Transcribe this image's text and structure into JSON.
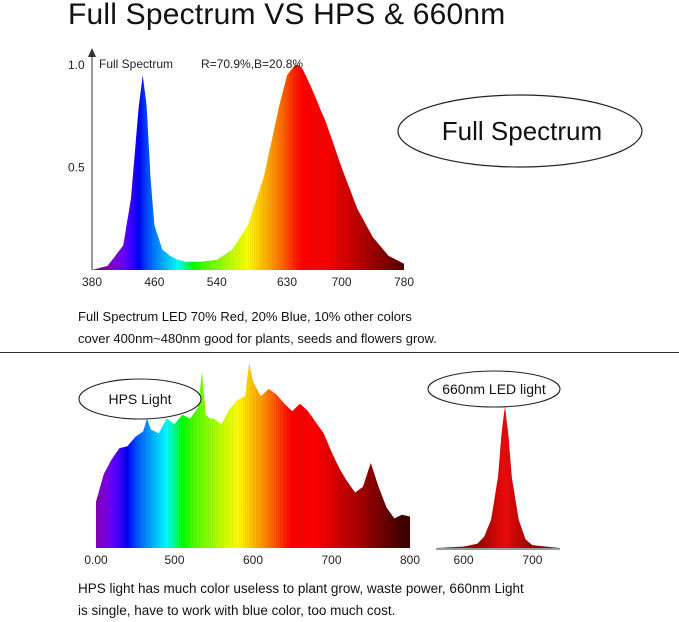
{
  "page": {
    "title": "Full Spectrum VS HPS & 660nm",
    "full_spectrum_desc_line1": "Full Spectrum LED 70% Red, 20% Blue, 10% other colors",
    "full_spectrum_desc_line2": "cover 400nm~480nm good for plants, seeds and flowers grow.",
    "hps_desc_line1": "HPS light has much color useless to plant grow, waste power, 660nm Light",
    "hps_desc_line2": "is single, have to work with blue color, too much cost."
  },
  "chart_data": [
    {
      "type": "area",
      "legend_label": "Full Spectrum",
      "annotation": "R=70.9%,B=20.8%",
      "badge": "Full Spectrum",
      "x_ticks": [
        "380",
        "460",
        "540",
        "630",
        "700",
        "780"
      ],
      "y_ticks": [
        "1.0",
        "0.5"
      ],
      "xlim": [
        380,
        780
      ],
      "ylim": [
        0,
        1.0
      ],
      "x": [
        380,
        400,
        420,
        430,
        440,
        445,
        450,
        455,
        460,
        470,
        480,
        490,
        500,
        520,
        540,
        560,
        580,
        600,
        620,
        630,
        640,
        645,
        650,
        660,
        680,
        700,
        720,
        740,
        760,
        780
      ],
      "y": [
        0.0,
        0.02,
        0.12,
        0.35,
        0.8,
        0.95,
        0.8,
        0.45,
        0.22,
        0.1,
        0.07,
        0.05,
        0.04,
        0.04,
        0.05,
        0.1,
        0.22,
        0.45,
        0.8,
        0.95,
        1.0,
        1.0,
        0.98,
        0.9,
        0.72,
        0.5,
        0.3,
        0.16,
        0.07,
        0.03
      ]
    },
    {
      "type": "area",
      "badge": "HPS Light",
      "x_ticks": [
        "0.00",
        "500",
        "600",
        "700",
        "800"
      ],
      "xlim": [
        400,
        800
      ],
      "ylim": [
        0,
        1.0
      ],
      "x": [
        400,
        410,
        420,
        430,
        440,
        450,
        460,
        465,
        470,
        480,
        490,
        500,
        510,
        520,
        530,
        535,
        540,
        545,
        550,
        560,
        570,
        580,
        590,
        595,
        600,
        610,
        620,
        630,
        640,
        650,
        660,
        670,
        680,
        690,
        700,
        710,
        720,
        730,
        740,
        750,
        760,
        770,
        780,
        790,
        800
      ],
      "y": [
        0.25,
        0.4,
        0.48,
        0.54,
        0.55,
        0.6,
        0.63,
        0.7,
        0.64,
        0.62,
        0.7,
        0.67,
        0.72,
        0.7,
        0.76,
        0.95,
        0.72,
        0.7,
        0.7,
        0.67,
        0.75,
        0.8,
        0.82,
        1.0,
        0.9,
        0.82,
        0.86,
        0.83,
        0.78,
        0.74,
        0.78,
        0.74,
        0.68,
        0.62,
        0.52,
        0.43,
        0.36,
        0.3,
        0.33,
        0.46,
        0.33,
        0.22,
        0.16,
        0.18,
        0.17
      ]
    },
    {
      "type": "area",
      "badge": "660nm LED light",
      "x_ticks": [
        "600",
        "700"
      ],
      "xlim": [
        560,
        740
      ],
      "ylim": [
        0,
        1.0
      ],
      "x": [
        560,
        600,
        620,
        630,
        640,
        650,
        655,
        660,
        665,
        670,
        680,
        690,
        700,
        740
      ],
      "y": [
        0.0,
        0.01,
        0.03,
        0.08,
        0.2,
        0.5,
        0.8,
        1.0,
        0.8,
        0.5,
        0.2,
        0.06,
        0.02,
        0.0
      ]
    }
  ]
}
